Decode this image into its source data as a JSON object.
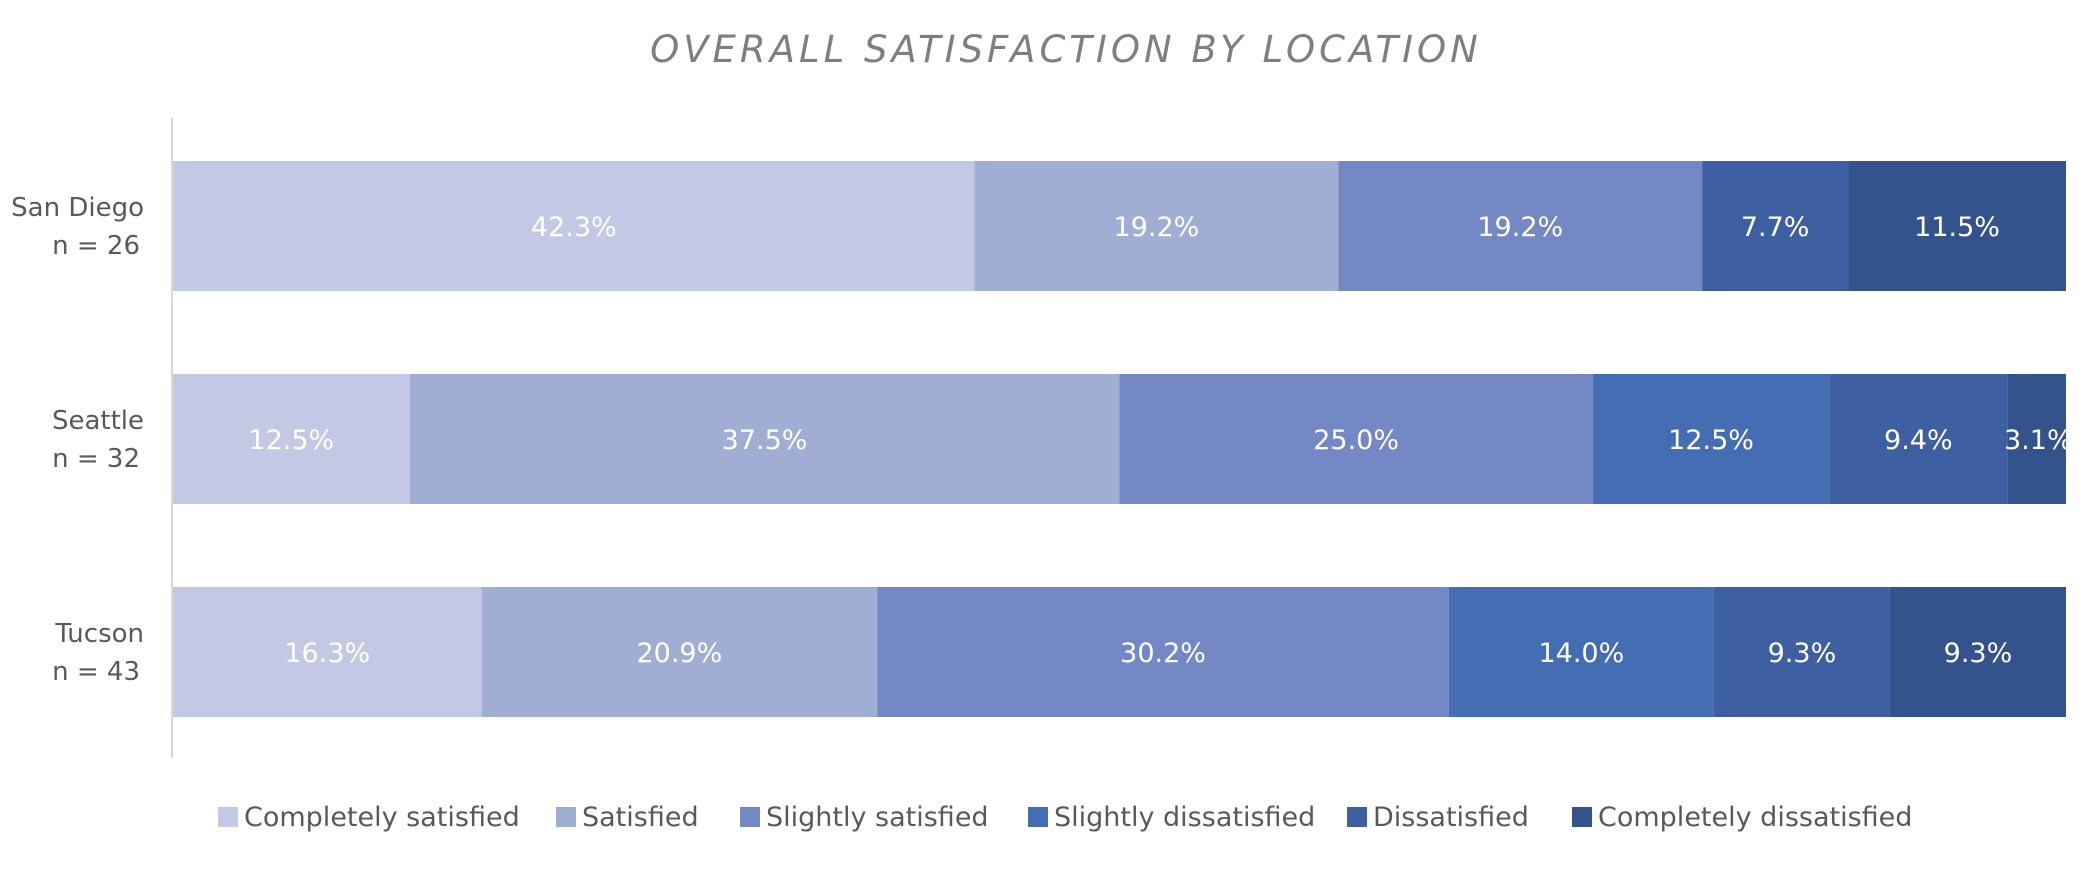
{
  "chart_data": {
    "type": "bar",
    "orientation": "horizontal",
    "stacked": "100%",
    "title": "OVERALL SATISFACTION BY LOCATION",
    "categories": [
      {
        "name": "San Diego",
        "n": "n = 26"
      },
      {
        "name": "Seattle",
        "n": "n = 32"
      },
      {
        "name": "Tucson",
        "n": "n = 43"
      }
    ],
    "series": [
      {
        "name": "Completely satisfied",
        "color": "#c3c9e4",
        "values": [
          42.3,
          12.5,
          16.3
        ],
        "labels": [
          "42.3%",
          "12.5%",
          "16.3%"
        ]
      },
      {
        "name": "Satisfied",
        "color": "#a0aed4",
        "values": [
          19.2,
          37.5,
          20.9
        ],
        "labels": [
          "19.2%",
          "37.5%",
          "20.9%"
        ]
      },
      {
        "name": "Slightly satisfied",
        "color": "#7388c4",
        "values": [
          19.2,
          25.0,
          30.2
        ],
        "labels": [
          "19.2%",
          "25.0%",
          "30.2%"
        ]
      },
      {
        "name": "Slightly dissatisfied",
        "color": "#456db4",
        "values": [
          0,
          12.5,
          14.0
        ],
        "labels": [
          "",
          "12.5%",
          "14.0%"
        ]
      },
      {
        "name": "Dissatisfied",
        "color": "#3e5fa2",
        "values": [
          7.7,
          9.4,
          9.3
        ],
        "labels": [
          "7.7%",
          "9.4%",
          "9.3%"
        ]
      },
      {
        "name": "Completely dissatisfied",
        "color": "#34528b",
        "values": [
          11.5,
          3.1,
          9.3
        ],
        "labels": [
          "11.5%",
          "3.1%",
          "9.3%"
        ]
      }
    ],
    "xlim": [
      0,
      100
    ],
    "legend": "bottom",
    "grid": false
  }
}
